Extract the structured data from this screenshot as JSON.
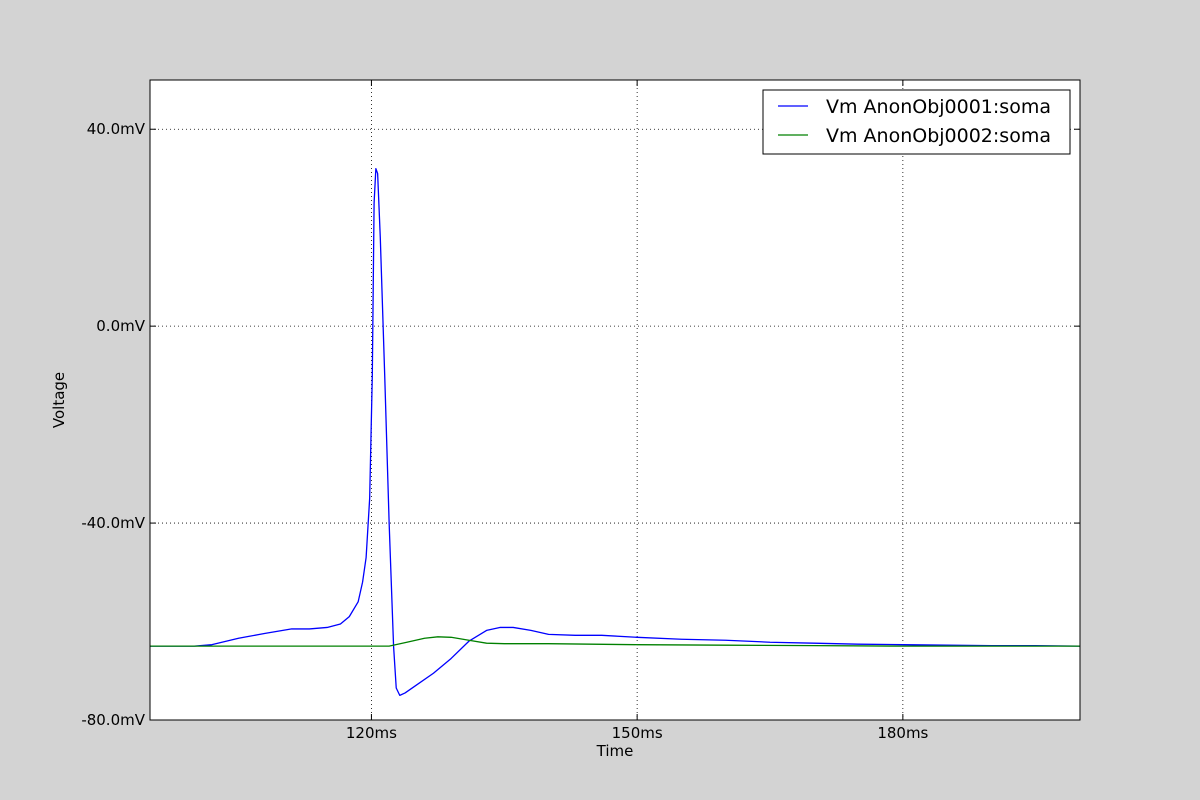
{
  "chart_data": {
    "type": "line",
    "title": "",
    "xlabel": "Time",
    "ylabel": "Voltage",
    "xlim": [
      95,
      200
    ],
    "ylim": [
      -80,
      50
    ],
    "x_unit": "ms",
    "y_unit": "mV",
    "xticks": [
      120,
      150,
      180
    ],
    "xtick_labels": [
      "120ms",
      "150ms",
      "180ms"
    ],
    "yticks": [
      -80,
      -40,
      0,
      40
    ],
    "ytick_labels": [
      "-80.0mV",
      "-40.0mV",
      "0.0mV",
      "40.0mV"
    ],
    "grid": true,
    "legend_position": "top-right",
    "series": [
      {
        "name": "Vm AnonObj0001:soma",
        "color": "#0000ff",
        "x": [
          95,
          100,
          102,
          105,
          108,
          111,
          113,
          115,
          116.5,
          117.5,
          118.5,
          119,
          119.4,
          119.8,
          120.1,
          120.3,
          120.5,
          120.7,
          121,
          121.5,
          122,
          122.5,
          122.8,
          123.2,
          123.8,
          125,
          127,
          129,
          131,
          133,
          134.5,
          136,
          138,
          140,
          143,
          146,
          150,
          155,
          160,
          165,
          170,
          175,
          180,
          185,
          190,
          195,
          200
        ],
        "y": [
          -65,
          -65,
          -64.7,
          -63.4,
          -62.4,
          -61.5,
          -61.5,
          -61.2,
          -60.5,
          -59,
          -56,
          -52,
          -47,
          -35,
          -10,
          25,
          32,
          31,
          18,
          -10,
          -40,
          -65,
          -73.5,
          -75,
          -74.5,
          -73,
          -70.5,
          -67.5,
          -64,
          -61.8,
          -61.2,
          -61.2,
          -61.8,
          -62.6,
          -62.8,
          -62.8,
          -63.2,
          -63.6,
          -63.8,
          -64.2,
          -64.4,
          -64.6,
          -64.7,
          -64.8,
          -64.9,
          -64.9,
          -65
        ]
      },
      {
        "name": "Vm AnonObj0002:soma",
        "color": "#008000",
        "x": [
          95,
          110,
          120,
          122,
          124,
          126,
          127.5,
          129,
          131,
          133,
          135,
          140,
          150,
          160,
          170,
          180,
          190,
          200
        ],
        "y": [
          -65,
          -65,
          -65,
          -65,
          -64.2,
          -63.4,
          -63.1,
          -63.2,
          -63.8,
          -64.4,
          -64.5,
          -64.5,
          -64.7,
          -64.8,
          -64.9,
          -65,
          -65,
          -65
        ]
      }
    ]
  }
}
